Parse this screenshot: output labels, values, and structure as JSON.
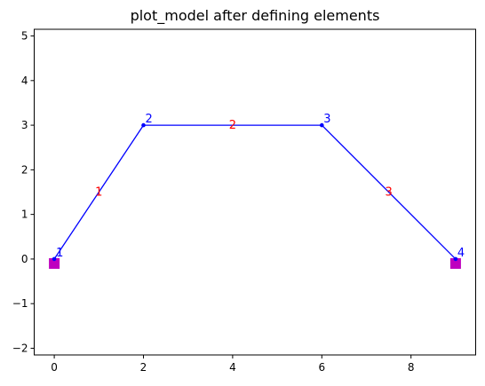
{
  "chart_data": {
    "type": "line",
    "title": "plot_model after defining elements",
    "xlabel": "",
    "ylabel": "",
    "xlim": [
      -0.45,
      9.45
    ],
    "ylim": [
      -2.15,
      5.15
    ],
    "xticks": [
      0,
      2,
      4,
      6,
      8
    ],
    "yticks": [
      -2,
      -1,
      0,
      1,
      2,
      3,
      4,
      5
    ],
    "xtick_labels": [
      "0",
      "2",
      "4",
      "6",
      "8"
    ],
    "ytick_labels": [
      "−2",
      "−1",
      "0",
      "1",
      "2",
      "3",
      "4",
      "5"
    ],
    "grid": false,
    "nodes": [
      {
        "label": "1",
        "x": 0,
        "y": 0
      },
      {
        "label": "2",
        "x": 2,
        "y": 3
      },
      {
        "label": "3",
        "x": 6,
        "y": 3
      },
      {
        "label": "4",
        "x": 9,
        "y": 0
      }
    ],
    "elements": [
      {
        "label": "1",
        "from": 0,
        "to": 1
      },
      {
        "label": "2",
        "from": 1,
        "to": 2
      },
      {
        "label": "3",
        "from": 2,
        "to": 3
      }
    ],
    "supports": [
      {
        "x": 0,
        "y": -0.1
      },
      {
        "x": 9,
        "y": -0.1
      }
    ],
    "colors": {
      "element_line": "#0000ff",
      "node_label": "#0000ff",
      "element_label": "#ff0000",
      "support": "#bf00bf"
    }
  }
}
